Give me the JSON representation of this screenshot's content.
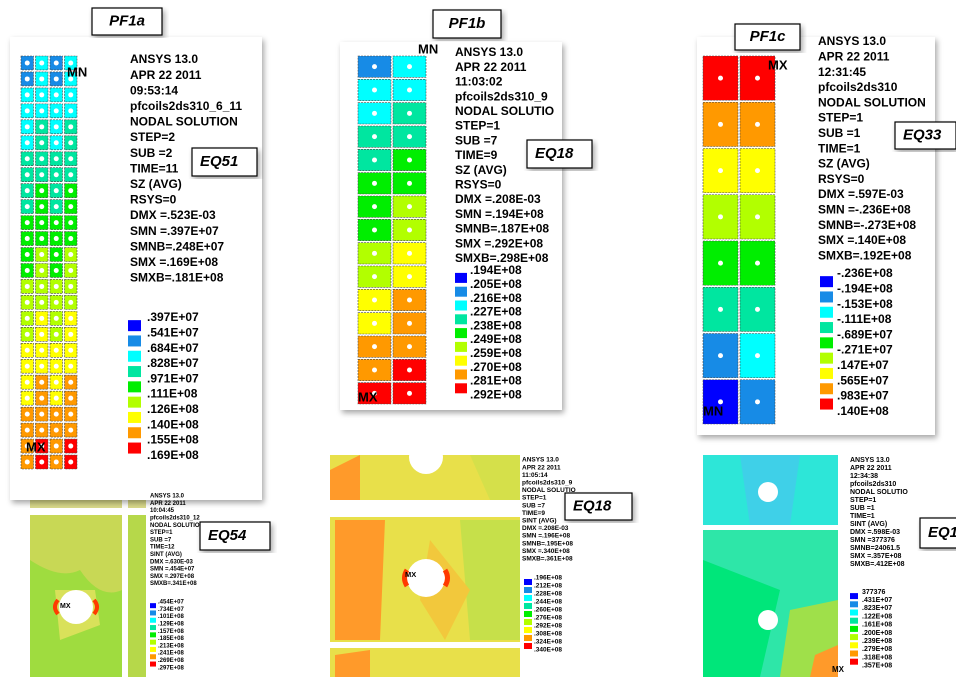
{
  "legend_colors": [
    "#0000ff",
    "#178be6",
    "#00ffff",
    "#00e6a0",
    "#00ee00",
    "#b2ff00",
    "#ffff00",
    "#ff9900",
    "#ff0000"
  ],
  "panels": [
    {
      "label": "PF1a",
      "eq": "EQ51",
      "header": [
        "ANSYS 13.0",
        "APR 22 2011",
        "09:53:14",
        "pfcoils2ds310_6_11",
        "NODAL SOLUTION",
        "STEP=2",
        "SUB =2",
        "TIME=11",
        "SZ       (AVG)",
        "RSYS=0",
        "DMX =.523E-03",
        "SMN =.397E+07",
        "SMNB=.248E+07",
        "SMX =.169E+08",
        "SMXB=.181E+08"
      ],
      "legend": [
        ".397E+07",
        ".541E+07",
        ".684E+07",
        ".828E+07",
        ".971E+07",
        ".111E+08",
        ".126E+08",
        ".140E+08",
        ".155E+08",
        ".169E+08"
      ],
      "plot_labels": [
        "MN",
        "MX"
      ]
    },
    {
      "label": "PF1b",
      "eq": "EQ18",
      "header": [
        "ANSYS 13.0",
        "APR 22 2011",
        "11:03:02",
        "pfcoils2ds310_9",
        "NODAL SOLUTIO",
        "STEP=1",
        "SUB =7",
        "TIME=9",
        "SZ       (AVG)",
        "RSYS=0",
        "DMX =.208E-03",
        "SMN =.194E+08",
        "SMNB=.187E+08",
        "SMX =.292E+08",
        "SMXB=.298E+08"
      ],
      "legend": [
        ".194E+08",
        ".205E+08",
        ".216E+08",
        ".227E+08",
        ".238E+08",
        ".249E+08",
        ".259E+08",
        ".270E+08",
        ".281E+08",
        ".292E+08"
      ],
      "plot_labels": [
        "MN",
        "MX"
      ]
    },
    {
      "label": "PF1c",
      "eq": "EQ33",
      "header": [
        "ANSYS 13.0",
        "APR 22 2011",
        "12:31:45",
        "pfcoils2ds310",
        "NODAL SOLUTION",
        "STEP=1",
        "SUB =1",
        "TIME=1",
        "SZ       (AVG)",
        "RSYS=0",
        "DMX =.597E-03",
        "SMN =-.236E+08",
        "SMNB=-.273E+08",
        "SMX =.140E+08",
        "SMXB=.192E+08"
      ],
      "legend": [
        "-.236E+08",
        "-.194E+08",
        "-.153E+08",
        "-.111E+08",
        "-.689E+07",
        "-.271E+07",
        ".147E+07",
        ".565E+07",
        ".983E+07",
        ".140E+08"
      ],
      "plot_labels": [
        "MX",
        "MN"
      ]
    },
    {
      "eq": "EQ54",
      "header": [
        "ANSYS 13.0",
        "APR 22 2011",
        "10:04:45",
        "pfcoils2ds310_12",
        "NODAL SOLUTION",
        "STEP=1",
        "SUB =7",
        "TIME=12",
        "SINT     (AVG)",
        "DMX =.630E-03",
        "SMN =.454E+07",
        "SMX =.297E+08",
        "SMXB=.341E+08"
      ],
      "legend": [
        ".454E+07",
        ".734E+07",
        ".101E+08",
        ".129E+08",
        ".157E+08",
        ".185E+08",
        ".213E+08",
        ".241E+08",
        ".269E+08",
        ".297E+08"
      ],
      "plot_labels": [
        "MX"
      ]
    },
    {
      "eq": "EQ18",
      "header": [
        "ANSYS 13.0",
        "APR 22 2011",
        "11:05:14",
        "pfcoils2ds310_9",
        "NODAL SOLUTIO",
        "STEP=1",
        "SUB =7",
        "TIME=9",
        "SINT     (AVG)",
        "DMX =.208E-03",
        "SMN =.196E+08",
        "SMNB=.195E+08",
        "SMX =.340E+08",
        "SMXB=.361E+08"
      ],
      "legend": [
        ".196E+08",
        ".212E+08",
        ".228E+08",
        ".244E+08",
        ".260E+08",
        ".276E+08",
        ".292E+08",
        ".308E+08",
        ".324E+08",
        ".340E+08"
      ],
      "plot_labels": [
        "MX"
      ]
    },
    {
      "eq": "EQ1",
      "header": [
        "ANSYS 13.0",
        "APR 22 2011",
        "12:34:38",
        "pfcoils2ds310",
        "NODAL SOLUTIO",
        "STEP=1",
        "SUB =1",
        "TIME=1",
        "SINT     (AVG)",
        "DMX =.598E-03",
        "SMN =377376",
        "SMNB=24061.5",
        "SMX =.357E+08",
        "SMXB=.412E+08"
      ],
      "legend": [
        "377376",
        ".431E+07",
        ".823E+07",
        ".122E+08",
        ".161E+08",
        ".200E+08",
        ".239E+08",
        ".279E+08",
        ".318E+08",
        ".357E+08"
      ],
      "plot_labels": [
        "MX"
      ]
    }
  ]
}
